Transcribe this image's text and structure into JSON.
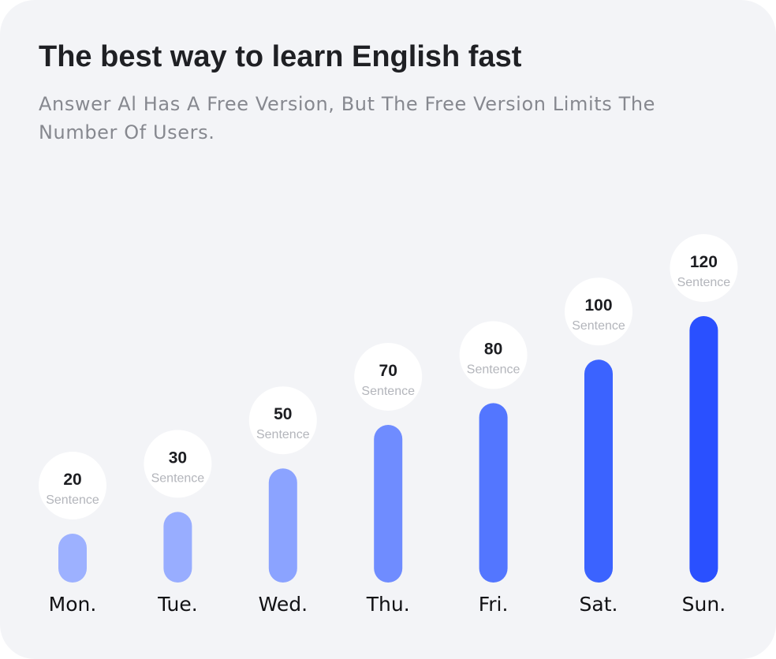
{
  "header": {
    "title": "The best way to learn English fast",
    "subtitle": "Answer Al Has A Free Version, But The Free Version Limits The Number Of Users."
  },
  "colors": {
    "background": "#f3f4f7",
    "bubble": "#ffffff",
    "bar_light": "#9db1ff",
    "bar_dark": "#2a50ff"
  },
  "chart_data": {
    "type": "bar",
    "categories": [
      "Mon.",
      "Tue.",
      "Wed.",
      "Thu.",
      "Fri.",
      "Sat.",
      "Sun."
    ],
    "values": [
      20,
      30,
      50,
      70,
      80,
      100,
      120
    ],
    "value_unit_label": "Sentence",
    "title": "The best way to learn English fast",
    "xlabel": "",
    "ylabel": "",
    "grid": false,
    "legend": "none",
    "bar_colors": [
      "#9db1ff",
      "#98adff",
      "#8ba3ff",
      "#6f8cff",
      "#5376ff",
      "#3b63ff",
      "#2a50ff"
    ]
  }
}
